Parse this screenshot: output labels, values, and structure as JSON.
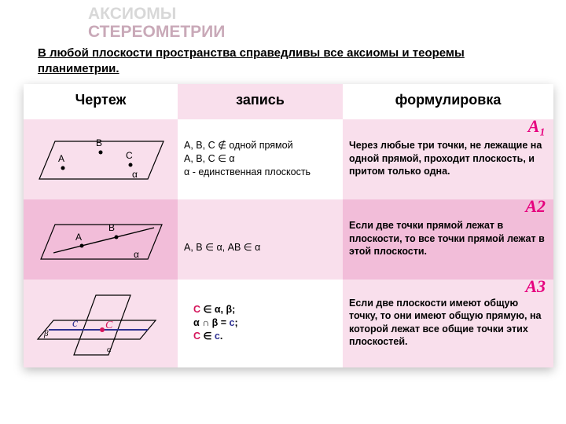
{
  "title": {
    "line1": "АКСИОМЫ",
    "line2": "СТЕРЕОМЕТРИИ"
  },
  "subtitle": {
    "pre": "В любой плоскости пространства справедливы ",
    "all": "все",
    "post": " аксиомы и теоремы планиметрии."
  },
  "headers": {
    "c1": "Чертеж",
    "c2": "запись",
    "c3": "формулировка"
  },
  "rows": [
    {
      "axlabel": "А₁",
      "record": "A, B, C ∉ одной прямой\nA, B, C ∈ α\nα - единственная плоскость",
      "form": "Через любые три точки, не лежащие на одной прямой, проходит плоскость, и притом только одна."
    },
    {
      "axlabel": "А2",
      "record": "A, B ∈ α, AB ∈ α",
      "form": "Если две точки прямой лежат в плоскости, то все точки прямой лежат в этой плоскости."
    },
    {
      "axlabel": "А3",
      "record_html": "<span class='c-red'>C</span> ∈ α, β;<br>α ∩ β = <span class='c-blue'>c</span>;<br><span class='c-red'>C</span> ∈ <span class='c-blue'>c</span>.",
      "form": "Если две плоскости имеют общую точку, то они имеют общую прямую, на которой лежат все общие точки этих плоскостей."
    }
  ],
  "colors": {
    "pink_light": "#f9dfec",
    "pink_mid": "#f2bdd9",
    "accent": "#e6007e",
    "red": "#d4145a",
    "blue": "#2e3192",
    "stroke": "#000000"
  }
}
